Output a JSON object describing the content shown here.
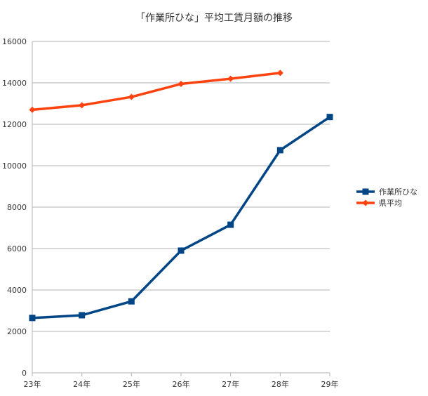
{
  "chart_data": {
    "type": "line",
    "title": "「作業所ひな」平均工賃月額の推移",
    "categories": [
      "23年",
      "24年",
      "25年",
      "26年",
      "27年",
      "28年",
      "29年"
    ],
    "ylim": [
      0,
      16000
    ],
    "yticks": [
      0,
      2000,
      4000,
      6000,
      8000,
      10000,
      12000,
      14000,
      16000
    ],
    "grid": true,
    "legend_position": "right",
    "series": [
      {
        "name": "作業所ひな",
        "color": "#004586",
        "marker": "square",
        "values": [
          2650,
          2780,
          3450,
          5900,
          7150,
          10750,
          12350
        ]
      },
      {
        "name": "県平均",
        "color": "#ff420e",
        "marker": "diamond",
        "values": [
          12700,
          12920,
          13320,
          13950,
          14200,
          14480,
          null
        ]
      }
    ]
  }
}
